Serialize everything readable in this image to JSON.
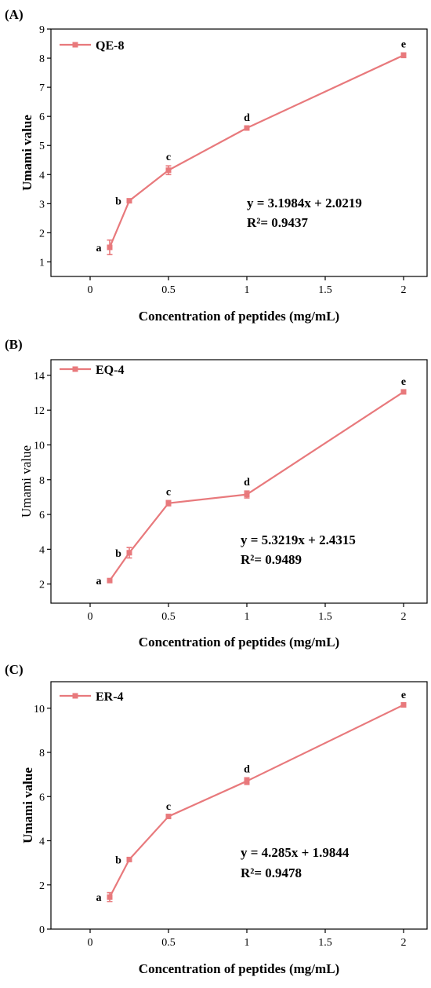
{
  "series_color": "#e8797c",
  "chart_data": [
    {
      "type": "line",
      "panel_label": "(A)",
      "legend": "QE-8",
      "legend_position": "top-left",
      "xlabel": "Concentration of peptides (mg/mL)",
      "ylabel": "Umami value",
      "xlim": [
        -0.25,
        2.15
      ],
      "ylim": [
        0.5,
        9.0
      ],
      "xticks": [
        0,
        0.5,
        1,
        1.5,
        2
      ],
      "xtick_labels": [
        "0",
        "0.5",
        "1",
        "1.5",
        "2"
      ],
      "yticks": [
        1,
        2,
        3,
        4,
        5,
        6,
        7,
        8,
        9
      ],
      "ytick_labels": [
        "1",
        "2",
        "3",
        "4",
        "5",
        "6",
        "7",
        "8",
        "9"
      ],
      "x": [
        0.125,
        0.25,
        0.5,
        1,
        2
      ],
      "y": [
        1.5,
        3.1,
        4.15,
        5.6,
        8.1
      ],
      "error": [
        0.25,
        0.05,
        0.15,
        0.05,
        0.08
      ],
      "letters": [
        "a",
        "b",
        "c",
        "d",
        "e"
      ],
      "equation": "y = 3.1984x + 2.0219",
      "r2": "R²= 0.9437",
      "grid": false
    },
    {
      "type": "line",
      "panel_label": "(B)",
      "legend": "EQ-4",
      "legend_position": "top-left",
      "xlabel": "Concentration of peptides (mg/mL)",
      "ylabel": "Umami value",
      "xlim": [
        -0.25,
        2.15
      ],
      "ylim": [
        0.9,
        14.9
      ],
      "xticks": [
        0,
        0.5,
        1,
        1.5,
        2
      ],
      "xtick_labels": [
        "0",
        "0.5",
        "1",
        "1.5",
        "2"
      ],
      "yticks": [
        2,
        4,
        6,
        8,
        10,
        12,
        14
      ],
      "ytick_labels": [
        "2",
        "4",
        "6",
        "8",
        "10",
        "12",
        "14"
      ],
      "x": [
        0.125,
        0.25,
        0.5,
        1,
        2
      ],
      "y": [
        2.2,
        3.8,
        6.65,
        7.15,
        13.05
      ],
      "error": [
        0.1,
        0.3,
        0.15,
        0.2,
        0.1
      ],
      "letters": [
        "a",
        "b",
        "c",
        "d",
        "e"
      ],
      "equation": "y = 5.3219x + 2.4315",
      "r2": "R²= 0.9489",
      "grid": false
    },
    {
      "type": "line",
      "panel_label": "(C)",
      "legend": "ER-4",
      "legend_position": "top-left",
      "xlabel": "Concentration of peptides (mg/mL)",
      "ylabel": "Umami value",
      "xlim": [
        -0.25,
        2.15
      ],
      "ylim": [
        0,
        11.2
      ],
      "xticks": [
        0,
        0.5,
        1,
        1.5,
        2
      ],
      "xtick_labels": [
        "0",
        "0.5",
        "1",
        "1.5",
        "2"
      ],
      "yticks": [
        0,
        2,
        4,
        6,
        8,
        10
      ],
      "ytick_labels": [
        "0",
        "2",
        "4",
        "6",
        "8",
        "10"
      ],
      "x": [
        0.125,
        0.25,
        0.5,
        1,
        2
      ],
      "y": [
        1.45,
        3.15,
        5.1,
        6.7,
        10.15
      ],
      "error": [
        0.2,
        0.05,
        0.05,
        0.15,
        0.05
      ],
      "letters": [
        "a",
        "b",
        "c",
        "d",
        "e"
      ],
      "equation": "y = 4.285x + 1.9844",
      "r2": "R²= 0.9478",
      "grid": false
    }
  ]
}
